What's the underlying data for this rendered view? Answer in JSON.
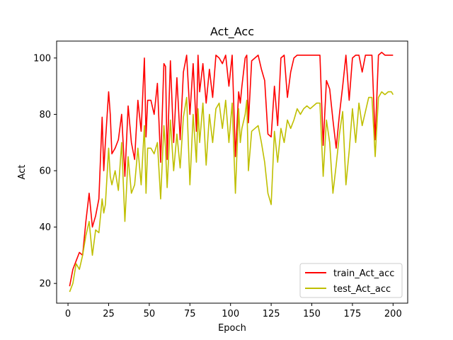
{
  "chart_data": {
    "type": "line",
    "title": "Act_Acc",
    "xlabel": "Epoch",
    "ylabel": "Act",
    "xlim": [
      -7,
      209
    ],
    "ylim": [
      13,
      106
    ],
    "xticks": [
      0,
      25,
      50,
      75,
      100,
      125,
      150,
      175,
      200
    ],
    "yticks": [
      20,
      40,
      60,
      80,
      100
    ],
    "grid": false,
    "legend_position": "lower right",
    "series": [
      {
        "name": "train_Act_acc",
        "color": "#ff0000",
        "x": [
          1,
          3,
          5,
          7,
          9,
          11,
          13,
          15,
          17,
          19,
          21,
          22,
          23,
          25,
          26,
          27,
          29,
          31,
          33,
          35,
          37,
          39,
          41,
          43,
          45,
          47,
          48,
          49,
          51,
          53,
          55,
          57,
          59,
          60,
          61,
          63,
          65,
          67,
          69,
          71,
          73,
          75,
          77,
          79,
          80,
          81,
          83,
          85,
          87,
          89,
          91,
          93,
          95,
          97,
          99,
          101,
          103,
          105,
          106,
          107,
          109,
          110,
          111,
          113,
          115,
          117,
          119,
          121,
          123,
          125,
          127,
          129,
          131,
          133,
          135,
          137,
          139,
          141,
          143,
          145,
          147,
          149,
          151,
          153,
          155,
          157,
          159,
          161,
          163,
          165,
          167,
          169,
          171,
          173,
          175,
          177,
          179,
          181,
          183,
          185,
          187,
          189,
          191,
          193,
          195,
          197,
          199,
          200
        ],
        "values": [
          19,
          25,
          28,
          31,
          30,
          42,
          52,
          40,
          44,
          50,
          79,
          60,
          70,
          88,
          80,
          66,
          68,
          71,
          80,
          58,
          83,
          70,
          64,
          85,
          74,
          100,
          72,
          85,
          85,
          80,
          91,
          63,
          98,
          97,
          64,
          99,
          70,
          93,
          71,
          95,
          101,
          80,
          98,
          74,
          101,
          88,
          98,
          84,
          96,
          86,
          101,
          100,
          98,
          101,
          90,
          101,
          65,
          88,
          84,
          90,
          100,
          101,
          77,
          99,
          100,
          101,
          96,
          92,
          73,
          72,
          90,
          76,
          100,
          101,
          86,
          95,
          100,
          101,
          101,
          101,
          101,
          101,
          101,
          101,
          101,
          69,
          92,
          89,
          78,
          68,
          80,
          90,
          101,
          85,
          100,
          101,
          101,
          95,
          101,
          101,
          101,
          71,
          101,
          102,
          101,
          101,
          101,
          101
        ]
      },
      {
        "name": "test_Act_acc",
        "color": "#bfbf00",
        "x": [
          1,
          3,
          5,
          7,
          9,
          11,
          13,
          15,
          17,
          19,
          21,
          22,
          23,
          25,
          26,
          27,
          29,
          31,
          33,
          35,
          37,
          39,
          41,
          43,
          45,
          47,
          48,
          49,
          51,
          53,
          55,
          57,
          59,
          60,
          61,
          63,
          65,
          67,
          69,
          71,
          73,
          75,
          77,
          79,
          80,
          81,
          83,
          85,
          87,
          89,
          91,
          93,
          95,
          97,
          99,
          101,
          103,
          105,
          106,
          107,
          109,
          110,
          111,
          113,
          115,
          117,
          119,
          121,
          123,
          125,
          127,
          129,
          131,
          133,
          135,
          137,
          139,
          141,
          143,
          145,
          147,
          149,
          151,
          153,
          155,
          157,
          159,
          161,
          163,
          165,
          167,
          169,
          171,
          173,
          175,
          177,
          179,
          181,
          183,
          185,
          187,
          189,
          191,
          193,
          195,
          197,
          199,
          200
        ],
        "values": [
          17,
          20,
          27,
          25,
          30,
          37,
          42,
          30,
          39,
          38,
          50,
          45,
          48,
          68,
          58,
          55,
          60,
          53,
          70,
          42,
          65,
          52,
          55,
          68,
          55,
          76,
          52,
          68,
          68,
          66,
          70,
          50,
          76,
          68,
          54,
          78,
          60,
          73,
          61,
          79,
          86,
          55,
          80,
          63,
          82,
          70,
          84,
          62,
          80,
          70,
          82,
          84,
          75,
          85,
          70,
          84,
          52,
          82,
          70,
          75,
          80,
          85,
          60,
          74,
          75,
          76,
          70,
          63,
          52,
          48,
          74,
          63,
          75,
          70,
          78,
          75,
          78,
          82,
          80,
          82,
          83,
          82,
          83,
          84,
          84,
          58,
          78,
          70,
          52,
          62,
          73,
          81,
          55,
          67,
          82,
          70,
          84,
          76,
          81,
          86,
          86,
          65,
          86,
          88,
          87,
          88,
          88,
          87
        ]
      }
    ]
  }
}
